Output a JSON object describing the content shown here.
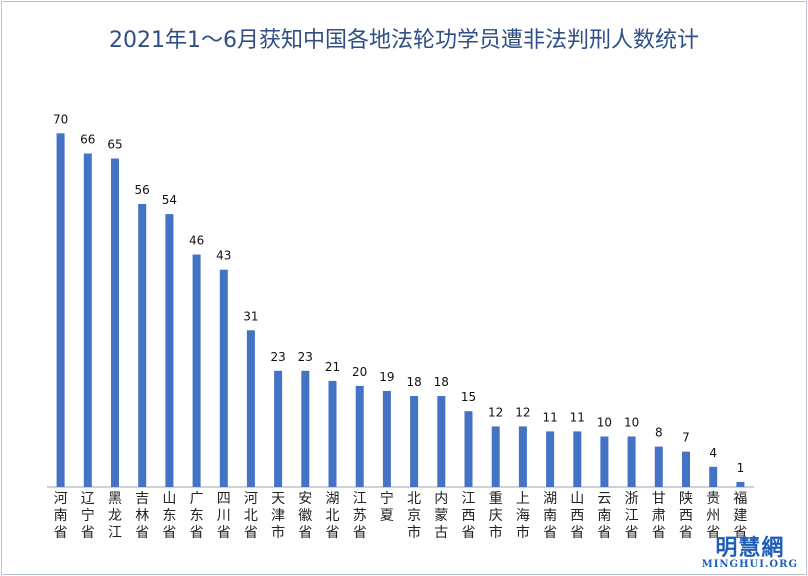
{
  "chart_data": {
    "type": "bar",
    "title": "2021年1～6月获知中国各地法轮功学员遭非法判刑人数统计",
    "categories": [
      "河南省",
      "辽宁省",
      "黑龙江",
      "吉林省",
      "山东省",
      "广东省",
      "四川省",
      "河北省",
      "天津市",
      "安徽省",
      "湖北省",
      "江苏省",
      "宁夏",
      "北京市",
      "内蒙古",
      "江西省",
      "重庆市",
      "上海市",
      "湖南省",
      "山西省",
      "云南省",
      "浙江省",
      "甘肃省",
      "陕西省",
      "贵州省",
      "福建省"
    ],
    "values": [
      70,
      66,
      65,
      56,
      54,
      46,
      43,
      31,
      23,
      23,
      21,
      20,
      19,
      18,
      18,
      15,
      12,
      12,
      11,
      11,
      10,
      10,
      8,
      7,
      4,
      1
    ],
    "ylim": [
      0,
      75
    ],
    "bar_color": "#4472c4",
    "axis_color": "#9aa5b5",
    "title_color": "#2f4f86",
    "grid": false,
    "legend": "none"
  },
  "watermark": {
    "main": "明慧網",
    "sub": "MINGHUI.ORG",
    "color": "#1f5fb8"
  }
}
